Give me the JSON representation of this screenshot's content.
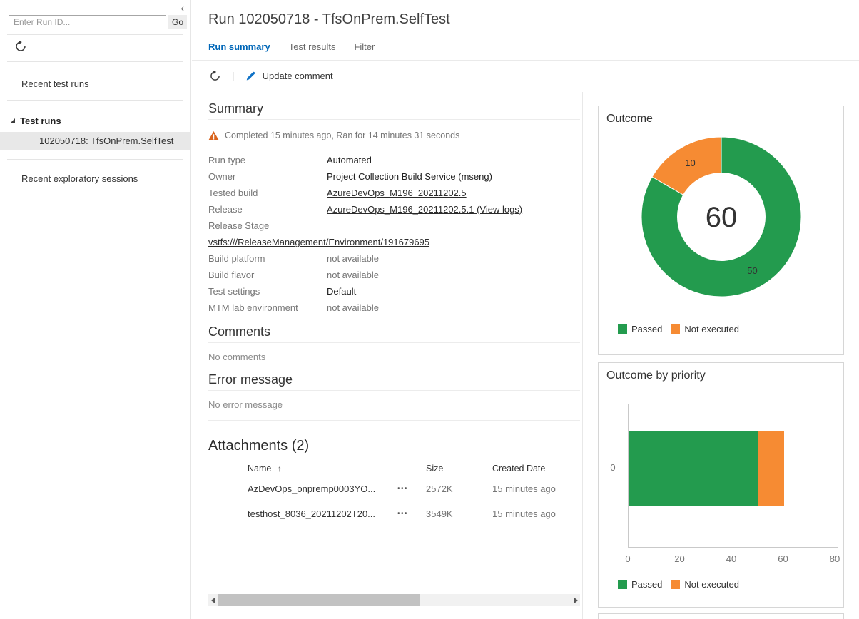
{
  "colors": {
    "accent_blue": "#0067B8",
    "passed_green": "#239B4E",
    "not_executed_orange": "#F68B33",
    "warning_orange": "#D9641E",
    "selected_item_bg": "#E8E8E8"
  },
  "sidebar": {
    "collapse_icon": "‹",
    "run_id_input": {
      "value": "",
      "placeholder": "Enter Run ID..."
    },
    "go_button": "Go",
    "recent_test_runs_label": "Recent test runs",
    "test_runs_header": "Test runs",
    "selected_run": "102050718: TfsOnPrem.SelfTest",
    "recent_exploratory_label": "Recent exploratory sessions"
  },
  "header": {
    "title": "Run 102050718 - TfsOnPrem.SelfTest",
    "tabs": [
      {
        "label": "Run summary",
        "active": true
      },
      {
        "label": "Test results",
        "active": false
      },
      {
        "label": "Filter",
        "active": false
      }
    ]
  },
  "toolbar": {
    "update_comment_label": "Update comment"
  },
  "summary": {
    "heading": "Summary",
    "status_text": "Completed 15 minutes ago, Ran for 14 minutes 31 seconds",
    "rows": [
      {
        "label": "Run type",
        "value": "Automated"
      },
      {
        "label": "Owner",
        "value": "Project Collection Build Service (mseng)"
      },
      {
        "label": "Tested build",
        "value": "AzureDevOps_M196_20211202.5"
      },
      {
        "label": "Release",
        "value": "AzureDevOps_M196_20211202.5.1 (View logs)"
      },
      {
        "label": "Release Stage",
        "value": ""
      },
      {
        "label": "",
        "value": "vstfs:///ReleaseManagement/Environment/191679695"
      },
      {
        "label": "Build platform",
        "value": "not available"
      },
      {
        "label": "Build flavor",
        "value": "not available"
      },
      {
        "label": "Test settings",
        "value": "Default"
      },
      {
        "label": "MTM lab environment",
        "value": "not available"
      }
    ]
  },
  "comments": {
    "heading": "Comments",
    "empty_text": "No comments"
  },
  "error_message": {
    "heading": "Error message",
    "empty_text": "No error message"
  },
  "attachments": {
    "heading": "Attachments (2)",
    "sort_icon": "↑",
    "more_icon": "•••",
    "columns": {
      "name": "Name",
      "size": "Size",
      "created": "Created Date"
    },
    "rows": [
      {
        "name": "AzDevOps_onpremp0003YO...",
        "size": "2572K",
        "created": "15 minutes ago"
      },
      {
        "name": "testhost_8036_20211202T20...",
        "size": "3549K",
        "created": "15 minutes ago"
      }
    ]
  },
  "chart_data": [
    {
      "type": "pie",
      "subtype": "donut",
      "title": "Outcome",
      "slices": [
        {
          "label": "Passed",
          "value": 50,
          "color": "#239B4E"
        },
        {
          "label": "Not executed",
          "value": 10,
          "color": "#F68B33"
        }
      ],
      "center_total": 60,
      "legend_position": "bottom",
      "start_angle_deg": 0,
      "direction": "clockwise"
    },
    {
      "type": "bar",
      "orientation": "horizontal",
      "stacked": true,
      "title": "Outcome by priority",
      "categories": [
        "0"
      ],
      "series": [
        {
          "name": "Passed",
          "values": [
            50
          ],
          "color": "#239B4E"
        },
        {
          "name": "Not executed",
          "values": [
            10
          ],
          "color": "#F68B33"
        }
      ],
      "xlim": [
        0,
        80
      ],
      "xticks": [
        0,
        20,
        40,
        60,
        80
      ],
      "xlabel": "",
      "ylabel": "",
      "legend_position": "bottom"
    }
  ]
}
